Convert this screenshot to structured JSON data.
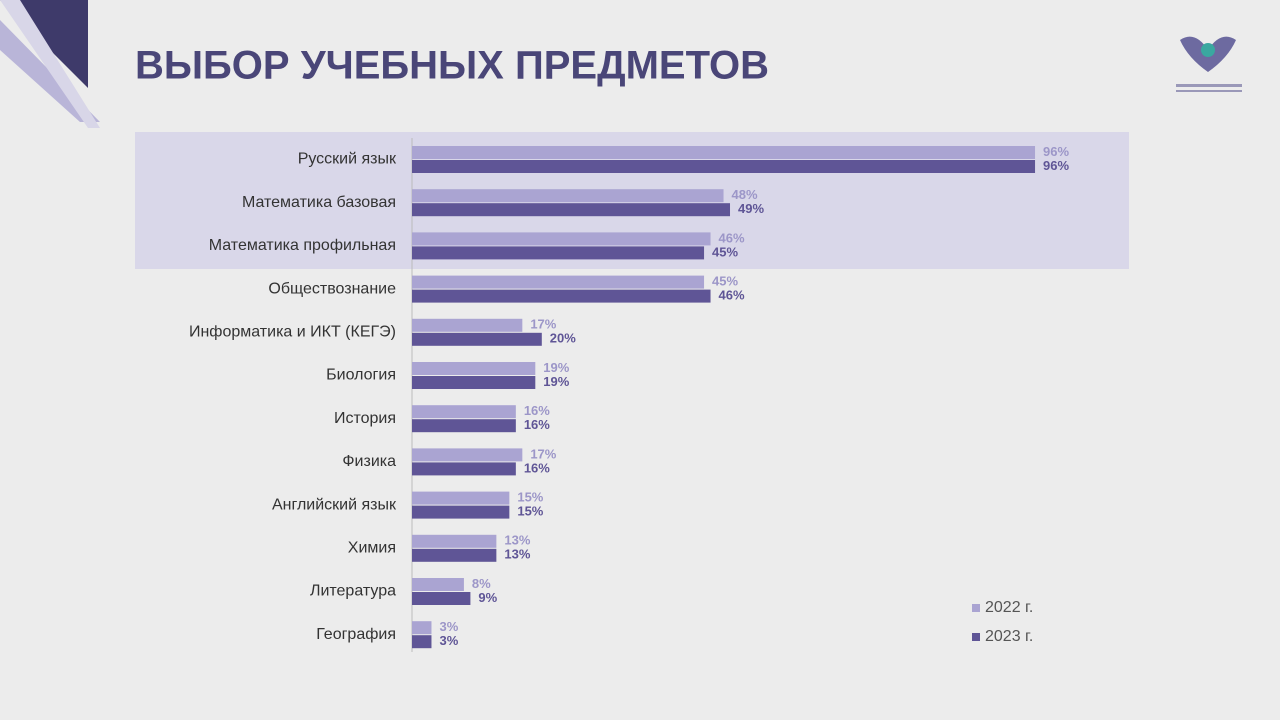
{
  "chart_data": {
    "type": "hbar",
    "title": "ВЫБОР УЧЕБНЫХ ПРЕДМЕТОВ",
    "categories": [
      "Русский язык",
      "Математика базовая",
      "Математика профильная",
      "Обществознание",
      "Информатика и ИКТ (КЕГЭ)",
      "Биология",
      "История",
      "Физика",
      "Английский язык",
      "Химия",
      "Литература",
      "География"
    ],
    "xlim": [
      0,
      100
    ],
    "legend": "bottom-right",
    "series": [
      {
        "name": "2022 г.",
        "color": "#aaa4d2",
        "values": [
          96,
          48,
          46,
          45,
          17,
          19,
          16,
          17,
          15,
          13,
          8,
          3
        ],
        "value_labels": [
          "96%",
          "48%",
          "46%",
          "45%",
          "17%",
          "19%",
          "16%",
          "17%",
          "15%",
          "13%",
          "8%",
          "3%"
        ]
      },
      {
        "name": "2023 г.",
        "color": "#5f5596",
        "values": [
          96,
          49,
          45,
          46,
          20,
          19,
          16,
          16,
          15,
          13,
          9,
          3
        ],
        "value_labels": [
          "96%",
          "49%",
          "45%",
          "46%",
          "20%",
          "19%",
          "16%",
          "16%",
          "15%",
          "13%",
          "9%",
          "3%"
        ]
      }
    ]
  }
}
